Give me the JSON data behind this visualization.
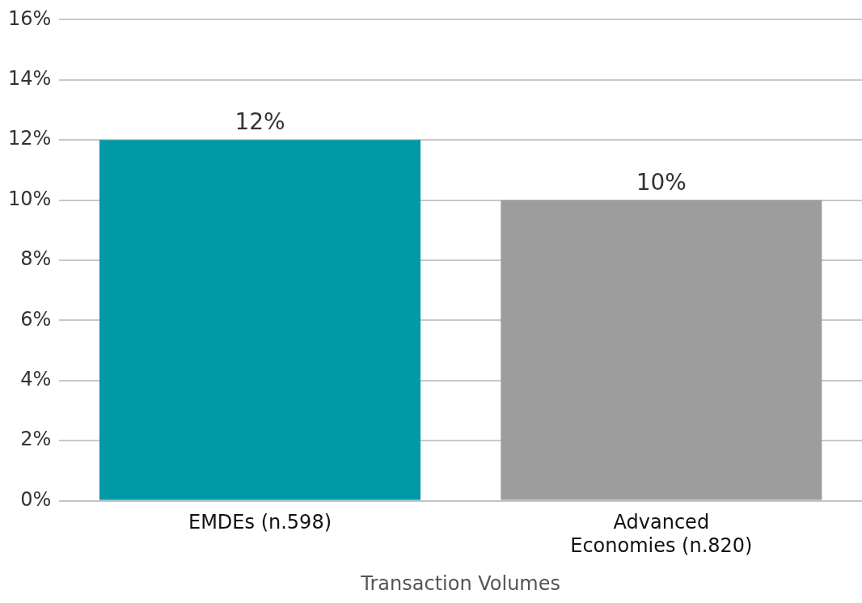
{
  "chart_data": {
    "type": "bar",
    "xlabel": "Transaction Volumes",
    "categories": [
      "EMDEs (n.598)",
      "Advanced Economies (n.820)"
    ],
    "values": [
      12,
      10
    ],
    "colors": [
      "#009aa6",
      "#9d9d9d"
    ],
    "value_labels": [
      "12%",
      "10%"
    ],
    "ylim": [
      0,
      16
    ],
    "yticks": [
      {
        "value": 0,
        "label": "0%"
      },
      {
        "value": 2,
        "label": "2%"
      },
      {
        "value": 4,
        "label": "4%"
      },
      {
        "value": 6,
        "label": "6%"
      },
      {
        "value": 8,
        "label": "8%"
      },
      {
        "value": 10,
        "label": "10%"
      },
      {
        "value": 12,
        "label": "12%"
      },
      {
        "value": 14,
        "label": "14%"
      },
      {
        "value": 16,
        "label": "16%"
      }
    ],
    "grid": "y",
    "legend": false
  }
}
